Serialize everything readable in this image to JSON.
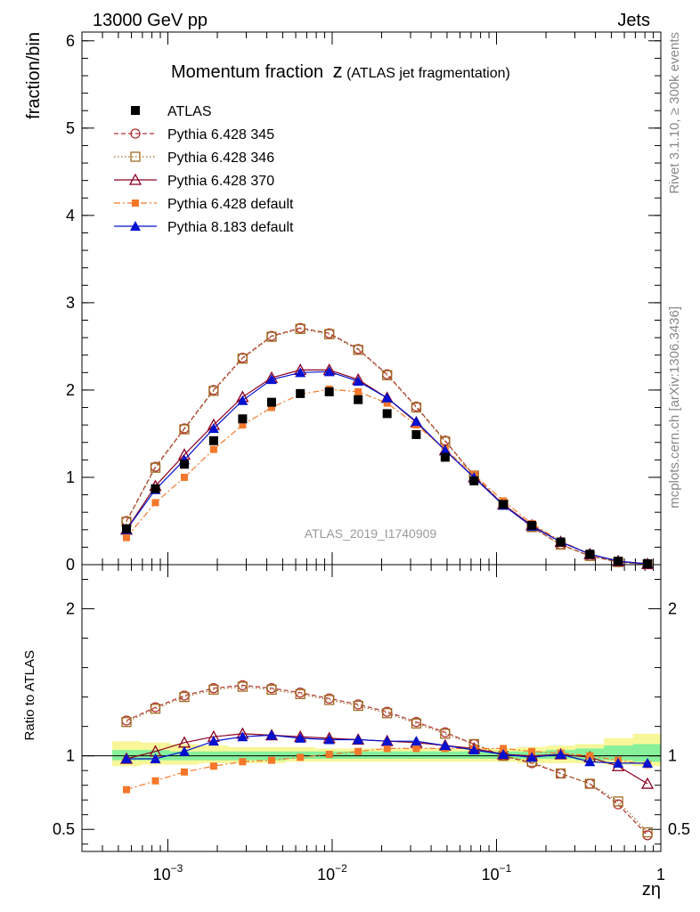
{
  "header": {
    "left": "13000 GeV pp",
    "right": "Jets"
  },
  "side_labels": {
    "rivet": "Rivet 3.1.10, ≥ 300k events",
    "mcplots": "mcplots.cern.ch [arXiv:1306.3436]"
  },
  "chart_data": {
    "type": "line",
    "title_main": "Momentum fraction",
    "title_z": "z",
    "title_paren": "(ATLAS jet fragmentation)",
    "analysis_label": "ATLAS_2019_I1740909",
    "xlabel": "zη",
    "xscale": "log",
    "xlim": [
      0.0003,
      1.0
    ],
    "x_tick_labels": [
      {
        "base": "10",
        "exp": "−3",
        "value": 0.001
      },
      {
        "base": "10",
        "exp": "−2",
        "value": 0.01
      },
      {
        "base": "10",
        "exp": "−1",
        "value": 0.1
      },
      {
        "base": "1",
        "exp": "",
        "value": 1.0
      }
    ],
    "top_panel": {
      "ylabel": "fraction/bin",
      "ylim": [
        0,
        6.1
      ],
      "y_ticks": [
        "0",
        "1",
        "2",
        "3",
        "4",
        "5",
        "6"
      ]
    },
    "ratio_panel": {
      "ylabel": "Ratio to ATLAS",
      "ylim": [
        0.35,
        2.3
      ],
      "y_ticks": [
        "0.5",
        "1",
        "2"
      ]
    },
    "x": [
      0.00056,
      0.00084,
      0.00126,
      0.0019,
      0.00285,
      0.00428,
      0.0064,
      0.0096,
      0.0144,
      0.0216,
      0.0325,
      0.0487,
      0.073,
      0.11,
      0.164,
      0.246,
      0.37,
      0.55,
      0.83
    ],
    "band": {
      "upper_yellow": [
        1.1,
        1.09,
        1.08,
        1.07,
        1.06,
        1.06,
        1.06,
        1.05,
        1.05,
        1.05,
        1.05,
        1.05,
        1.05,
        1.05,
        1.06,
        1.07,
        1.08,
        1.12,
        1.15
      ],
      "lower_yellow": [
        0.93,
        0.94,
        0.94,
        0.95,
        0.95,
        0.95,
        0.96,
        0.96,
        0.96,
        0.96,
        0.96,
        0.96,
        0.96,
        0.96,
        0.95,
        0.95,
        0.95,
        0.94,
        0.93
      ],
      "upper_green": [
        1.04,
        1.04,
        1.03,
        1.03,
        1.03,
        1.03,
        1.03,
        1.03,
        1.03,
        1.03,
        1.03,
        1.03,
        1.03,
        1.03,
        1.03,
        1.04,
        1.05,
        1.07,
        1.08
      ],
      "lower_green": [
        0.97,
        0.97,
        0.97,
        0.97,
        0.97,
        0.97,
        0.98,
        0.98,
        0.98,
        0.98,
        0.98,
        0.98,
        0.98,
        0.98,
        0.98,
        0.98,
        0.97,
        0.97,
        0.96
      ]
    },
    "series": [
      {
        "name": "ATLAS",
        "style": "data",
        "color": "#000000",
        "marker": "square-filled",
        "values": [
          0.41,
          0.87,
          1.15,
          1.42,
          1.67,
          1.86,
          1.96,
          1.98,
          1.89,
          1.73,
          1.49,
          1.23,
          0.96,
          0.69,
          0.45,
          0.26,
          0.12,
          0.04,
          0.01
        ]
      },
      {
        "name": "Pythia 6.428 345",
        "style": "dashed",
        "color": "#b03030",
        "marker": "circle-open",
        "values": [
          0.5,
          1.12,
          1.56,
          2.0,
          2.37,
          2.62,
          2.71,
          2.65,
          2.47,
          2.18,
          1.81,
          1.42,
          1.02,
          0.69,
          0.43,
          0.23,
          0.1,
          0.03,
          0.005
        ],
        "ratio": [
          1.24,
          1.33,
          1.41,
          1.46,
          1.48,
          1.46,
          1.43,
          1.39,
          1.35,
          1.3,
          1.23,
          1.16,
          1.08,
          1.0,
          0.95,
          0.88,
          0.81,
          0.67,
          0.46
        ]
      },
      {
        "name": "Pythia 6.428 346",
        "style": "dotted",
        "color": "#a06a20",
        "marker": "square-open",
        "values": [
          0.49,
          1.11,
          1.55,
          1.99,
          2.36,
          2.61,
          2.7,
          2.64,
          2.46,
          2.17,
          1.8,
          1.41,
          1.02,
          0.69,
          0.43,
          0.23,
          0.1,
          0.03,
          0.005
        ],
        "ratio": [
          1.23,
          1.32,
          1.4,
          1.45,
          1.47,
          1.45,
          1.42,
          1.38,
          1.34,
          1.29,
          1.22,
          1.15,
          1.08,
          1.0,
          0.96,
          0.88,
          0.81,
          0.69,
          0.48
        ]
      },
      {
        "name": "Pythia 6.428 370",
        "style": "solid",
        "color": "#8b0020",
        "marker": "triangle-open",
        "values": [
          0.4,
          0.9,
          1.26,
          1.6,
          1.92,
          2.14,
          2.23,
          2.23,
          2.12,
          1.91,
          1.63,
          1.31,
          1.0,
          0.69,
          0.45,
          0.26,
          0.12,
          0.04,
          0.008
        ],
        "ratio": [
          0.98,
          1.03,
          1.09,
          1.13,
          1.15,
          1.14,
          1.13,
          1.12,
          1.11,
          1.1,
          1.09,
          1.07,
          1.05,
          1.01,
          1.0,
          1.01,
          0.99,
          0.93,
          0.81
        ]
      },
      {
        "name": "Pythia 6.428 default",
        "style": "dashdot",
        "color": "#f4772a",
        "marker": "square-filled-small",
        "values": [
          0.31,
          0.71,
          1.0,
          1.32,
          1.6,
          1.8,
          1.95,
          2.01,
          1.98,
          1.85,
          1.6,
          1.32,
          1.03,
          0.73,
          0.47,
          0.27,
          0.12,
          0.04,
          0.01
        ],
        "ratio": [
          0.77,
          0.83,
          0.89,
          0.93,
          0.96,
          0.97,
          0.99,
          1.01,
          1.03,
          1.05,
          1.05,
          1.05,
          1.05,
          1.05,
          1.03,
          1.02,
          1.0,
          0.97,
          0.94
        ]
      },
      {
        "name": "Pythia 8.183 default",
        "style": "solid",
        "color": "#0010d0",
        "marker": "triangle-filled",
        "values": [
          0.4,
          0.86,
          1.2,
          1.56,
          1.88,
          2.12,
          2.2,
          2.21,
          2.1,
          1.91,
          1.64,
          1.31,
          1.0,
          0.68,
          0.44,
          0.26,
          0.12,
          0.04,
          0.009
        ],
        "ratio": [
          0.98,
          0.98,
          1.03,
          1.1,
          1.13,
          1.14,
          1.12,
          1.11,
          1.11,
          1.1,
          1.1,
          1.07,
          1.04,
          1.01,
          0.99,
          1.01,
          0.96,
          0.95,
          0.95
        ]
      }
    ]
  }
}
